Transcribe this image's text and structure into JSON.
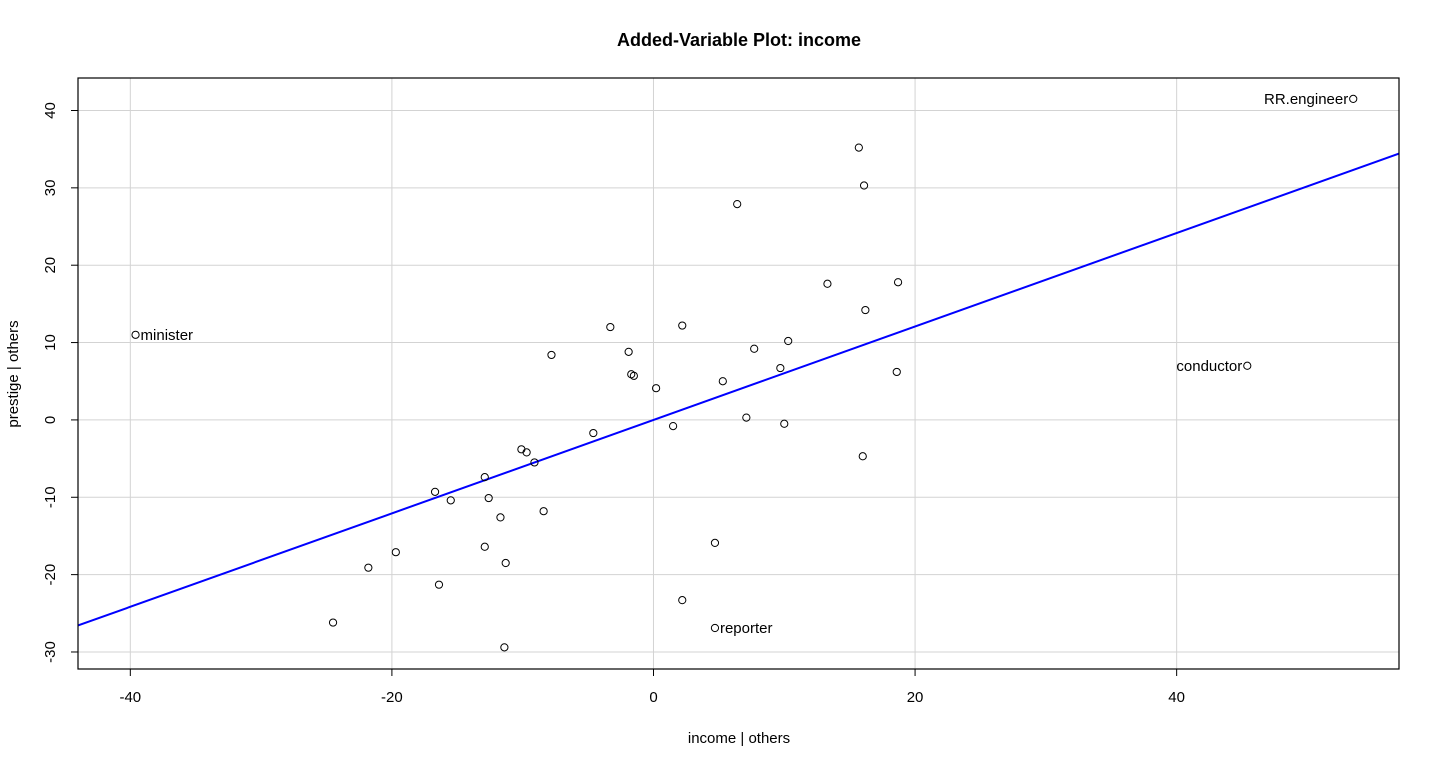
{
  "chart_data": {
    "type": "scatter",
    "title": "Added-Variable Plot: income",
    "xlabel": "income | others",
    "ylabel": "prestige  | others",
    "xlim": [
      -44,
      57
    ],
    "ylim": [
      -32.2,
      44.2
    ],
    "xticks": [
      -40,
      -20,
      0,
      20,
      40
    ],
    "yticks": [
      -30,
      -20,
      -10,
      0,
      10,
      20,
      30,
      40
    ],
    "grid": true,
    "line_color": "#0000ff",
    "fit_line": {
      "slope": 0.604,
      "intercept": 0.0
    },
    "points": [
      {
        "x": 53.5,
        "y": 41.5,
        "label": "RR.engineer",
        "label_side": "left"
      },
      {
        "x": -39.6,
        "y": 11.0,
        "label": "minister",
        "label_side": "right"
      },
      {
        "x": 45.4,
        "y": 7.0,
        "label": "conductor",
        "label_side": "left"
      },
      {
        "x": 4.7,
        "y": -26.9,
        "label": "reporter",
        "label_side": "right"
      },
      {
        "x": 15.7,
        "y": 35.2
      },
      {
        "x": 16.1,
        "y": 30.3
      },
      {
        "x": 6.4,
        "y": 27.9
      },
      {
        "x": 13.3,
        "y": 17.6
      },
      {
        "x": 18.7,
        "y": 17.8
      },
      {
        "x": 16.2,
        "y": 14.2
      },
      {
        "x": -3.3,
        "y": 12.0
      },
      {
        "x": 2.2,
        "y": 12.2
      },
      {
        "x": 10.3,
        "y": 10.2
      },
      {
        "x": 7.7,
        "y": 9.2
      },
      {
        "x": -1.9,
        "y": 8.8
      },
      {
        "x": -7.8,
        "y": 8.4
      },
      {
        "x": 9.7,
        "y": 6.7
      },
      {
        "x": 18.6,
        "y": 6.2
      },
      {
        "x": -1.7,
        "y": 5.9
      },
      {
        "x": -1.5,
        "y": 5.7
      },
      {
        "x": 5.3,
        "y": 5.0
      },
      {
        "x": 0.2,
        "y": 4.1
      },
      {
        "x": 7.1,
        "y": 0.3
      },
      {
        "x": 10.0,
        "y": -0.5
      },
      {
        "x": 1.5,
        "y": -0.8
      },
      {
        "x": -4.6,
        "y": -1.7
      },
      {
        "x": -10.1,
        "y": -3.8
      },
      {
        "x": -9.7,
        "y": -4.2
      },
      {
        "x": 16.0,
        "y": -4.7
      },
      {
        "x": -9.1,
        "y": -5.5
      },
      {
        "x": -12.9,
        "y": -7.4
      },
      {
        "x": -16.7,
        "y": -9.3
      },
      {
        "x": -12.6,
        "y": -10.1
      },
      {
        "x": -15.5,
        "y": -10.4
      },
      {
        "x": -8.4,
        "y": -11.8
      },
      {
        "x": -11.7,
        "y": -12.6
      },
      {
        "x": 4.7,
        "y": -15.9
      },
      {
        "x": -12.9,
        "y": -16.4
      },
      {
        "x": -19.7,
        "y": -17.1
      },
      {
        "x": -11.3,
        "y": -18.5
      },
      {
        "x": -21.8,
        "y": -19.1
      },
      {
        "x": -16.4,
        "y": -21.3
      },
      {
        "x": 2.2,
        "y": -23.3
      },
      {
        "x": -24.5,
        "y": -26.2
      },
      {
        "x": -11.4,
        "y": -29.4
      }
    ]
  }
}
